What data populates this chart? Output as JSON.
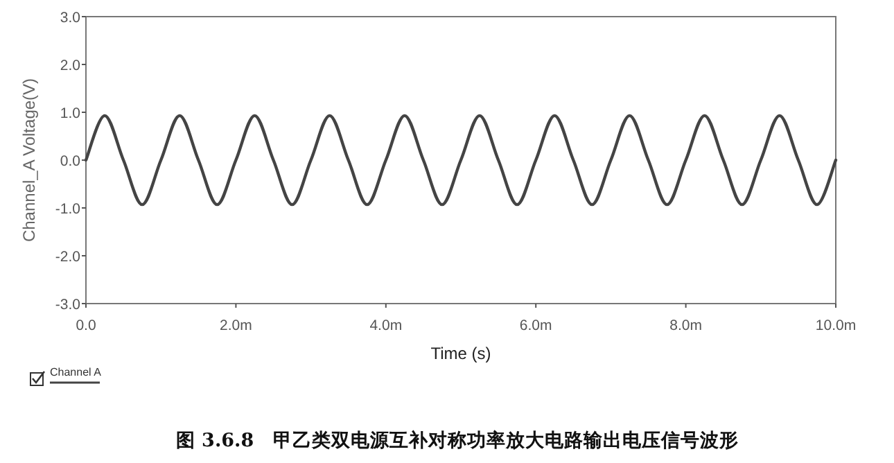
{
  "chart_data": {
    "type": "line",
    "xlabel": "Time (s)",
    "ylabel": "Channel_A Voltage(V)",
    "xlim": [
      0,
      10
    ],
    "xticks": [
      {
        "value": 0,
        "label": "0.0"
      },
      {
        "value": 2,
        "label": "2.0m"
      },
      {
        "value": 4,
        "label": "4.0m"
      },
      {
        "value": 6,
        "label": "6.0m"
      },
      {
        "value": 8,
        "label": "8.0m"
      },
      {
        "value": 10,
        "label": "10.0m"
      }
    ],
    "ylim": [
      -3,
      3
    ],
    "yticks": [
      {
        "value": -3,
        "label": "-3.0"
      },
      {
        "value": -2,
        "label": "-2.0"
      },
      {
        "value": -1,
        "label": "-1.0"
      },
      {
        "value": 0,
        "label": "0.0"
      },
      {
        "value": 1,
        "label": "1.0"
      },
      {
        "value": 2,
        "label": "2.0"
      },
      {
        "value": 3,
        "label": "3.0"
      }
    ],
    "grid": false,
    "legend": "bottom left",
    "marker": "none",
    "line_style": "solid",
    "annotations": [
      "图 3.6.8　甲乙类双电源互补对称功率放大电路输出电压信号波形"
    ],
    "series": [
      {
        "name": "Channel A",
        "color": "#444444",
        "x": [
          0,
          0.25,
          0.5,
          0.75,
          1,
          1.25,
          1.5,
          1.75,
          2,
          2.25,
          2.5,
          2.75,
          3,
          3.25,
          3.5,
          3.75,
          4,
          4.25,
          4.5,
          4.75,
          5,
          5.25,
          5.5,
          5.75,
          6,
          6.25,
          6.5,
          6.75,
          7,
          7.25,
          7.5,
          7.75,
          8,
          8.25,
          8.5,
          8.75,
          9,
          9.25,
          9.5,
          9.75,
          10
        ],
        "values": [
          0,
          0.93,
          0,
          -0.93,
          0,
          0.93,
          0,
          -0.93,
          0,
          0.93,
          0,
          -0.93,
          0,
          0.93,
          0,
          -0.93,
          0,
          0.93,
          0,
          -0.93,
          0,
          0.93,
          0,
          -0.93,
          0,
          0.93,
          0,
          -0.93,
          0,
          0.93,
          0,
          -0.93,
          0,
          0.93,
          0,
          -0.93,
          0,
          0.93,
          0,
          -0.93,
          0
        ]
      }
    ]
  }
}
